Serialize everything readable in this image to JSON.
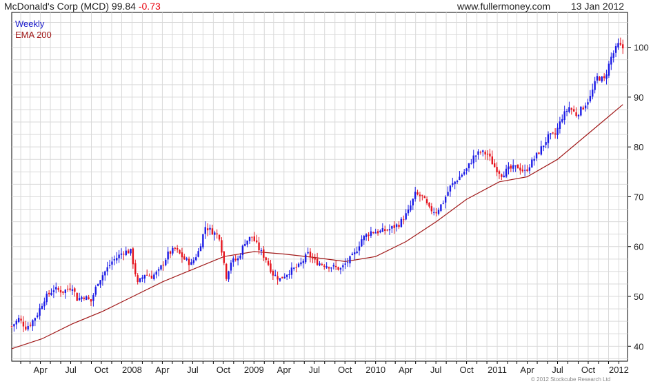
{
  "header": {
    "title": "McDonald's Corp (MCD) 99.84",
    "change": "-0.73",
    "website": "www.fullermoney.com",
    "date": "13 Jan 2012"
  },
  "footer": {
    "copyright": "© 2012 Stockcube Research Ltd"
  },
  "colors": {
    "up": "#1a1ae6",
    "down": "#e6141e",
    "ema": "#a01818",
    "grid": "#d9d9d9",
    "axis": "#000000"
  },
  "chart_data": {
    "type": "candlestick",
    "legend": [
      "Weekly",
      "EMA 200"
    ],
    "legend_position": "top-left",
    "grid": true,
    "ylim": [
      37,
      107
    ],
    "y_ticks": [
      40,
      50,
      60,
      70,
      80,
      90,
      100
    ],
    "x_ticks": [
      "Apr",
      "Jul",
      "Oct",
      "2008",
      "Apr",
      "Jul",
      "Oct",
      "2009",
      "Apr",
      "Jul",
      "Oct",
      "2010",
      "Apr",
      "Jul",
      "Oct",
      "2011",
      "Apr",
      "Jul",
      "Oct",
      "2012"
    ],
    "x_range": [
      "2007-01-05",
      "2012-01-27"
    ],
    "series": [
      {
        "name": "Weekly",
        "kind": "weekly_close",
        "anchors": [
          [
            "2007-01-05",
            44.0
          ],
          [
            "2007-01-26",
            45.5
          ],
          [
            "2007-02-16",
            43.8
          ],
          [
            "2007-03-02",
            44.5
          ],
          [
            "2007-03-23",
            46.5
          ],
          [
            "2007-04-13",
            49.5
          ],
          [
            "2007-05-11",
            51.5
          ],
          [
            "2007-06-08",
            51.0
          ],
          [
            "2007-07-06",
            52.0
          ],
          [
            "2007-07-20",
            49.5
          ],
          [
            "2007-08-10",
            50.0
          ],
          [
            "2007-08-31",
            49.0
          ],
          [
            "2007-09-21",
            53.0
          ],
          [
            "2007-10-12",
            55.0
          ],
          [
            "2007-11-02",
            57.0
          ],
          [
            "2007-12-07",
            59.0
          ],
          [
            "2007-12-28",
            59.0
          ],
          [
            "2008-01-18",
            52.5
          ],
          [
            "2008-02-08",
            54.5
          ],
          [
            "2008-02-29",
            54.0
          ],
          [
            "2008-03-21",
            55.0
          ],
          [
            "2008-04-18",
            58.5
          ],
          [
            "2008-05-09",
            59.5
          ],
          [
            "2008-06-06",
            57.5
          ],
          [
            "2008-06-27",
            56.5
          ],
          [
            "2008-07-18",
            59.0
          ],
          [
            "2008-08-08",
            64.0
          ],
          [
            "2008-08-29",
            63.0
          ],
          [
            "2008-09-19",
            62.0
          ],
          [
            "2008-10-10",
            54.0
          ],
          [
            "2008-10-24",
            57.0
          ],
          [
            "2008-11-14",
            57.5
          ],
          [
            "2008-12-05",
            61.0
          ],
          [
            "2008-12-26",
            62.0
          ],
          [
            "2009-01-16",
            59.5
          ],
          [
            "2009-02-06",
            57.5
          ],
          [
            "2009-02-27",
            54.5
          ],
          [
            "2009-03-20",
            53.5
          ],
          [
            "2009-04-17",
            55.0
          ],
          [
            "2009-05-15",
            56.0
          ],
          [
            "2009-06-12",
            58.5
          ],
          [
            "2009-07-03",
            57.0
          ],
          [
            "2009-07-24",
            56.5
          ],
          [
            "2009-08-21",
            56.0
          ],
          [
            "2009-09-18",
            55.5
          ],
          [
            "2009-10-09",
            57.0
          ],
          [
            "2009-10-30",
            58.5
          ],
          [
            "2009-11-20",
            61.5
          ],
          [
            "2009-12-18",
            63.0
          ],
          [
            "2010-01-15",
            63.0
          ],
          [
            "2010-02-12",
            63.5
          ],
          [
            "2010-03-12",
            64.5
          ],
          [
            "2010-04-09",
            67.0
          ],
          [
            "2010-04-30",
            70.5
          ],
          [
            "2010-05-21",
            70.0
          ],
          [
            "2010-06-11",
            67.5
          ],
          [
            "2010-07-02",
            67.0
          ],
          [
            "2010-07-23",
            69.0
          ],
          [
            "2010-08-13",
            72.0
          ],
          [
            "2010-09-03",
            73.5
          ],
          [
            "2010-10-01",
            75.5
          ],
          [
            "2010-10-22",
            78.0
          ],
          [
            "2010-11-12",
            79.0
          ],
          [
            "2010-12-03",
            78.5
          ],
          [
            "2010-12-24",
            76.0
          ],
          [
            "2011-01-14",
            74.5
          ],
          [
            "2011-02-04",
            75.5
          ],
          [
            "2011-03-04",
            76.0
          ],
          [
            "2011-03-25",
            75.0
          ],
          [
            "2011-04-15",
            77.0
          ],
          [
            "2011-05-06",
            79.0
          ],
          [
            "2011-06-03",
            82.0
          ],
          [
            "2011-06-24",
            82.5
          ],
          [
            "2011-07-15",
            86.0
          ],
          [
            "2011-08-05",
            88.0
          ],
          [
            "2011-08-26",
            86.5
          ],
          [
            "2011-09-16",
            88.0
          ],
          [
            "2011-10-07",
            90.0
          ],
          [
            "2011-10-28",
            94.0
          ],
          [
            "2011-11-18",
            93.5
          ],
          [
            "2011-12-09",
            98.0
          ],
          [
            "2011-12-30",
            100.5
          ],
          [
            "2012-01-13",
            99.84
          ]
        ]
      },
      {
        "name": "EMA 200",
        "kind": "line",
        "points": [
          [
            "2007-01-05",
            39.5
          ],
          [
            "2007-04-06",
            41.5
          ],
          [
            "2007-07-06",
            44.5
          ],
          [
            "2007-10-05",
            47.0
          ],
          [
            "2008-01-04",
            50.0
          ],
          [
            "2008-04-04",
            53.0
          ],
          [
            "2008-07-04",
            55.5
          ],
          [
            "2008-10-03",
            58.0
          ],
          [
            "2009-01-02",
            59.0
          ],
          [
            "2009-04-03",
            58.5
          ],
          [
            "2009-07-03",
            57.8
          ],
          [
            "2009-10-02",
            57.0
          ],
          [
            "2010-01-01",
            58.0
          ],
          [
            "2010-04-02",
            61.0
          ],
          [
            "2010-07-02",
            65.0
          ],
          [
            "2010-10-01",
            69.5
          ],
          [
            "2011-01-07",
            73.0
          ],
          [
            "2011-04-01",
            74.0
          ],
          [
            "2011-07-01",
            77.5
          ],
          [
            "2011-10-07",
            83.0
          ],
          [
            "2012-01-13",
            88.5
          ]
        ]
      }
    ]
  }
}
